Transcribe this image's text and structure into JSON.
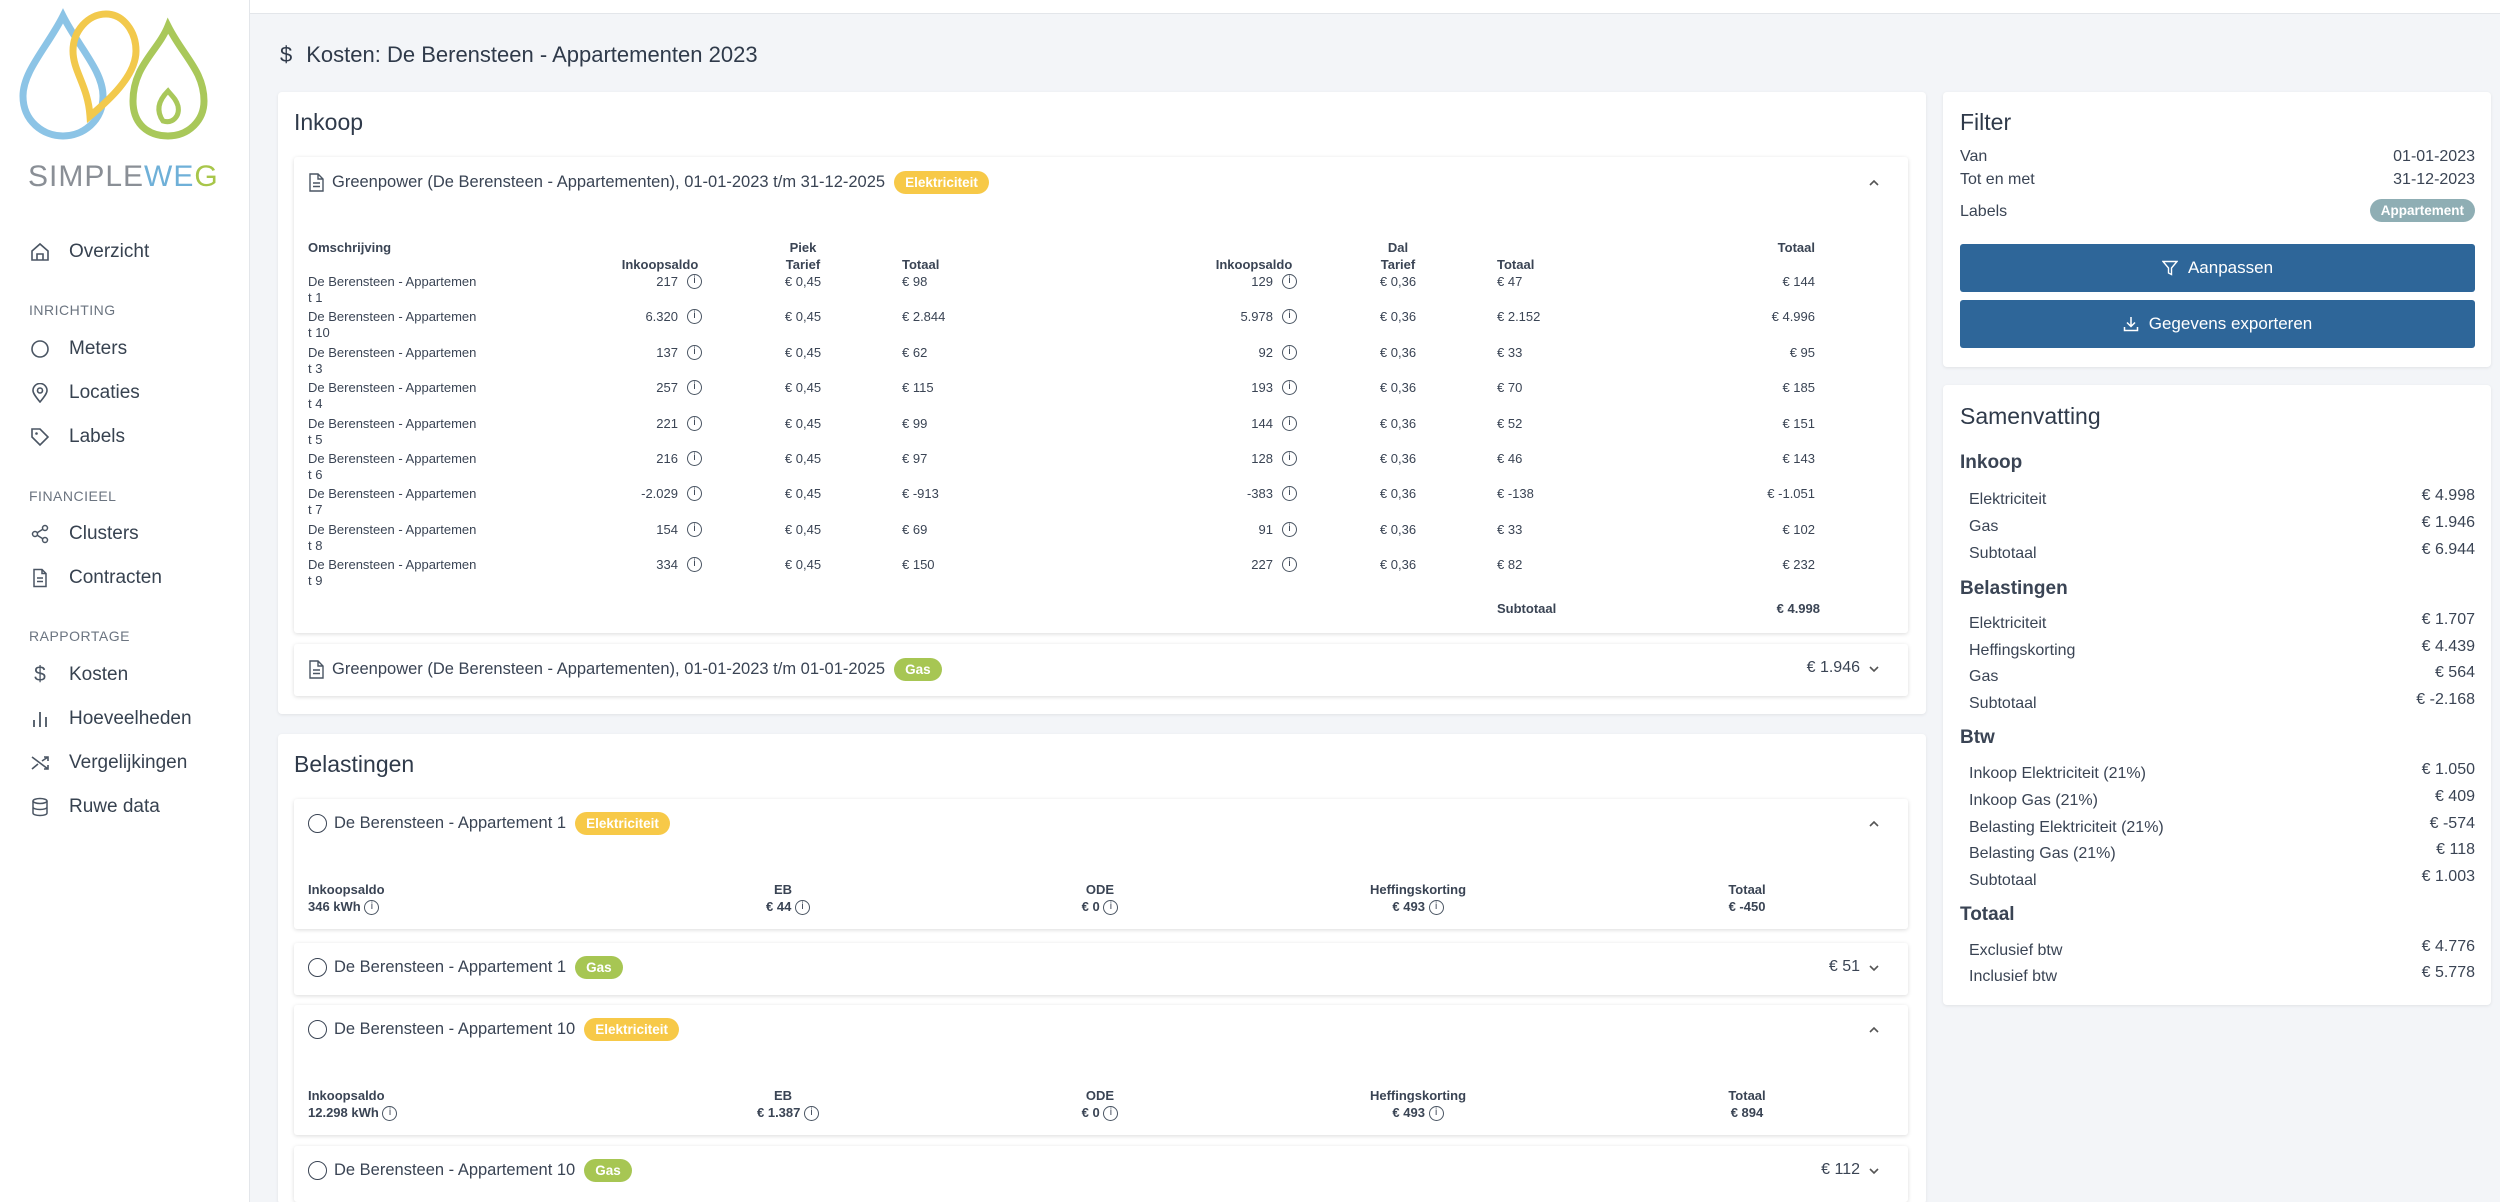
{
  "brand": {
    "part1": "SIMPLE",
    "part2": "W",
    "part3": "E",
    "part4": "G"
  },
  "nav": {
    "overzicht": "Overzicht",
    "section_inrichting": "INRICHTING",
    "meters": "Meters",
    "locaties": "Locaties",
    "labels": "Labels",
    "section_financieel": "FINANCIEEL",
    "clusters": "Clusters",
    "contracten": "Contracten",
    "section_rapportage": "RAPPORTAGE",
    "kosten": "Kosten",
    "hoeveelheden": "Hoeveelheden",
    "vergelijkingen": "Vergelijkingen",
    "ruwe_data": "Ruwe data"
  },
  "page_title": "Kosten: De Berensteen - Appartementen 2023",
  "inkoop": {
    "title": "Inkoop",
    "contract1": {
      "title": "Greenpower (De Berensteen - Appartementen), 01-01-2023 t/m 31-12-2025",
      "badge": "Elektriciteit"
    },
    "headers": {
      "omschrijving": "Omschrijving",
      "inkoopsaldo": "Inkoopsaldo",
      "piek": "Piek",
      "tarief": "Tarief",
      "totaal": "Totaal",
      "dal": "Dal"
    },
    "rows": [
      {
        "n1": "De Berensteen - Appartemen",
        "n2": "t 1",
        "pi": "217",
        "pt": "€ 0,45",
        "ptot": "€ 98",
        "di": "129",
        "dt": "€ 0,36",
        "dtot": "€ 47",
        "tot": "€ 144"
      },
      {
        "n1": "De Berensteen - Appartemen",
        "n2": "t 10",
        "pi": "6.320",
        "pt": "€ 0,45",
        "ptot": "€ 2.844",
        "di": "5.978",
        "dt": "€ 0,36",
        "dtot": "€ 2.152",
        "tot": "€ 4.996"
      },
      {
        "n1": "De Berensteen - Appartemen",
        "n2": "t 3",
        "pi": "137",
        "pt": "€ 0,45",
        "ptot": "€ 62",
        "di": "92",
        "dt": "€ 0,36",
        "dtot": "€ 33",
        "tot": "€ 95"
      },
      {
        "n1": "De Berensteen - Appartemen",
        "n2": "t 4",
        "pi": "257",
        "pt": "€ 0,45",
        "ptot": "€ 115",
        "di": "193",
        "dt": "€ 0,36",
        "dtot": "€ 70",
        "tot": "€ 185"
      },
      {
        "n1": "De Berensteen - Appartemen",
        "n2": "t 5",
        "pi": "221",
        "pt": "€ 0,45",
        "ptot": "€ 99",
        "di": "144",
        "dt": "€ 0,36",
        "dtot": "€ 52",
        "tot": "€ 151"
      },
      {
        "n1": "De Berensteen - Appartemen",
        "n2": "t 6",
        "pi": "216",
        "pt": "€ 0,45",
        "ptot": "€ 97",
        "di": "128",
        "dt": "€ 0,36",
        "dtot": "€ 46",
        "tot": "€ 143"
      },
      {
        "n1": "De Berensteen - Appartemen",
        "n2": "t 7",
        "pi": "-2.029",
        "pt": "€ 0,45",
        "ptot": "€ -913",
        "di": "-383",
        "dt": "€ 0,36",
        "dtot": "€ -138",
        "tot": "€ -1.051"
      },
      {
        "n1": "De Berensteen - Appartemen",
        "n2": "t 8",
        "pi": "154",
        "pt": "€ 0,45",
        "ptot": "€ 69",
        "di": "91",
        "dt": "€ 0,36",
        "dtot": "€ 33",
        "tot": "€ 102"
      },
      {
        "n1": "De Berensteen - Appartemen",
        "n2": "t 9",
        "pi": "334",
        "pt": "€ 0,45",
        "ptot": "€ 150",
        "di": "227",
        "dt": "€ 0,36",
        "dtot": "€ 82",
        "tot": "€ 232"
      }
    ],
    "subtotal_label": "Subtotaal",
    "subtotal_value": "€ 4.998",
    "contract2": {
      "title": "Greenpower (De Berensteen - Appartementen), 01-01-2023 t/m 01-01-2025",
      "badge": "Gas",
      "total": "€ 1.946"
    }
  },
  "belastingen": {
    "title": "Belastingen",
    "labels": {
      "inkoopsaldo": "Inkoopsaldo",
      "eb": "EB",
      "ode": "ODE",
      "heffingskorting": "Heffingskorting",
      "totaal": "Totaal"
    },
    "items": [
      {
        "name": "De Berensteen - Appartement 1",
        "badge": "Elektriciteit",
        "inkoopsaldo": "346 kWh",
        "eb": "€ 44",
        "ode": "€ 0",
        "hk": "€ 493",
        "totaal": "€ -450"
      },
      {
        "name": "De Berensteen - Appartement 1",
        "badge": "Gas",
        "total": "€ 51"
      },
      {
        "name": "De Berensteen - Appartement 10",
        "badge": "Elektriciteit",
        "inkoopsaldo": "12.298 kWh",
        "eb": "€ 1.387",
        "ode": "€ 0",
        "hk": "€ 493",
        "totaal": "€ 894"
      },
      {
        "name": "De Berensteen - Appartement 10",
        "badge": "Gas",
        "total": "€ 112"
      }
    ]
  },
  "filter": {
    "title": "Filter",
    "van_label": "Van",
    "van_value": "01-01-2023",
    "tot_label": "Tot en met",
    "tot_value": "31-12-2023",
    "labels_label": "Labels",
    "labels_badge": "Appartement",
    "aanpassen": "Aanpassen",
    "exporteren": "Gegevens exporteren"
  },
  "samenvatting": {
    "title": "Samenvatting",
    "inkoop_h": "Inkoop",
    "inkoop": [
      {
        "l": "Elektriciteit",
        "v": "€ 4.998"
      },
      {
        "l": "Gas",
        "v": "€ 1.946"
      },
      {
        "l": "Subtotaal",
        "v": "€ 6.944"
      }
    ],
    "belastingen_h": "Belastingen",
    "belastingen": [
      {
        "l": "Elektriciteit",
        "v": "€ 1.707"
      },
      {
        "l": "Heffingskorting",
        "v": "€ 4.439"
      },
      {
        "l": "Gas",
        "v": "€ 564"
      },
      {
        "l": "Subtotaal",
        "v": "€ -2.168"
      }
    ],
    "btw_h": "Btw",
    "btw": [
      {
        "l": "Inkoop Elektriciteit (21%)",
        "v": "€ 1.050"
      },
      {
        "l": "Inkoop Gas (21%)",
        "v": "€ 409"
      },
      {
        "l": "Belasting Elektriciteit (21%)",
        "v": "€ -574"
      },
      {
        "l": "Belasting Gas (21%)",
        "v": "€ 118"
      },
      {
        "l": "Subtotaal",
        "v": "€ 1.003"
      }
    ],
    "totaal_h": "Totaal",
    "totaal": [
      {
        "l": "Exclusief btw",
        "v": "€ 4.776"
      },
      {
        "l": "Inclusief btw",
        "v": "€ 5.778"
      }
    ]
  }
}
